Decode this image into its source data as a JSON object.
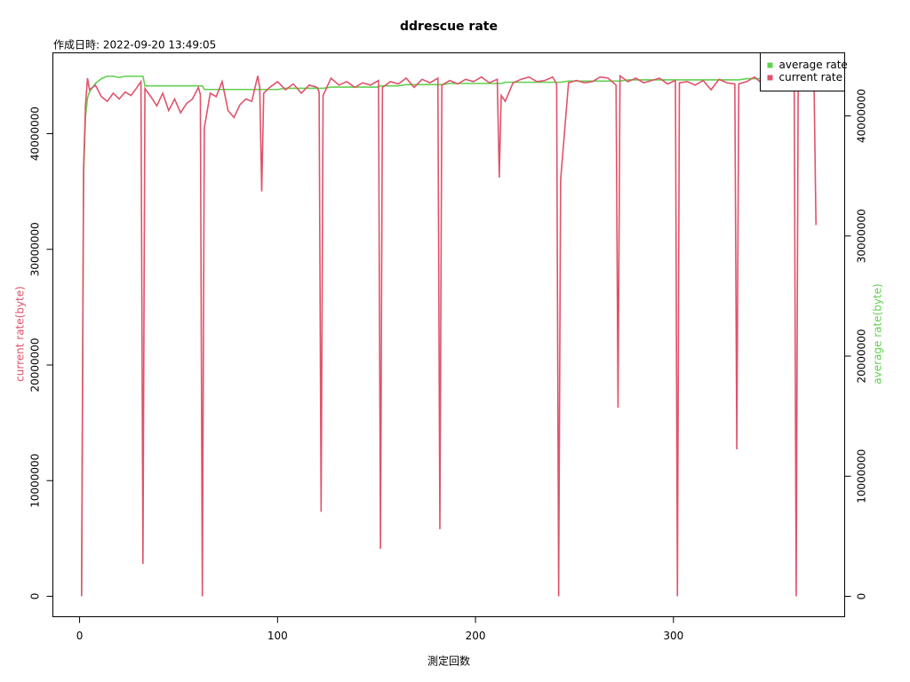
{
  "chart_data": {
    "type": "line",
    "title": "ddrescue rate",
    "subtitle": "作成日時: 2022-09-20 13:49:05",
    "x_label": "測定回数",
    "y_label": "current rate(byte)",
    "y2_label": "average rate(byte)",
    "legend": "top-right",
    "x": [
      1,
      2,
      3,
      4,
      5,
      8,
      11,
      14,
      17,
      20,
      23,
      26,
      29,
      31,
      32,
      33,
      36,
      39,
      42,
      45,
      48,
      51,
      54,
      57,
      60,
      61,
      62,
      63,
      66,
      69,
      72,
      75,
      78,
      81,
      84,
      87,
      90,
      91,
      92,
      93,
      96,
      100,
      104,
      108,
      112,
      116,
      120,
      121,
      122,
      123,
      127,
      131,
      135,
      139,
      143,
      147,
      151,
      152,
      153,
      157,
      161,
      165,
      169,
      173,
      177,
      181,
      182,
      183,
      187,
      191,
      195,
      199,
      203,
      207,
      211,
      212,
      213,
      215,
      219,
      223,
      227,
      231,
      235,
      239,
      241,
      242,
      243,
      247,
      251,
      255,
      259,
      263,
      267,
      271,
      272,
      273,
      277,
      281,
      285,
      289,
      293,
      297,
      301,
      302,
      303,
      307,
      311,
      315,
      319,
      323,
      327,
      331,
      332,
      333,
      337,
      341,
      345,
      349,
      353,
      357,
      361,
      362,
      363,
      367,
      371,
      372
    ],
    "series": [
      {
        "name": "average rate",
        "color": "#61D04F",
        "axis": "y2",
        "values": [
          0,
          35000000,
          40000000,
          41500000,
          42000000,
          42700000,
          43100000,
          43300000,
          43300000,
          43200000,
          43300000,
          43300000,
          43300000,
          43300000,
          43300000,
          42500000,
          42500000,
          42500000,
          42500000,
          42500000,
          42500000,
          42500000,
          42500000,
          42500000,
          42500000,
          42500000,
          42500000,
          42200000,
          42200000,
          42200000,
          42200000,
          42200000,
          42200000,
          42200000,
          42200000,
          42200000,
          42200000,
          42200000,
          42200000,
          42200000,
          42200000,
          42200000,
          42300000,
          42300000,
          42300000,
          42300000,
          42300000,
          42300000,
          42300000,
          42300000,
          42400000,
          42400000,
          42400000,
          42400000,
          42400000,
          42400000,
          42400000,
          42500000,
          42500000,
          42500000,
          42500000,
          42600000,
          42600000,
          42600000,
          42600000,
          42600000,
          42600000,
          42600000,
          42700000,
          42700000,
          42700000,
          42700000,
          42700000,
          42700000,
          42700000,
          42700000,
          42700000,
          42800000,
          42800000,
          42800000,
          42800000,
          42800000,
          42800000,
          42800000,
          42800000,
          42800000,
          42800000,
          42900000,
          42900000,
          42900000,
          42900000,
          42900000,
          42900000,
          42900000,
          42900000,
          42900000,
          43000000,
          43000000,
          43000000,
          43000000,
          43000000,
          43000000,
          43000000,
          43000000,
          43000000,
          43000000,
          43000000,
          43000000,
          43000000,
          43000000,
          43000000,
          43000000,
          43000000,
          43000000,
          43100000,
          43100000,
          43100000,
          43100000,
          43100000,
          43100000,
          43100000,
          43100000,
          43100000,
          43100000,
          43100000,
          43100000
        ]
      },
      {
        "name": "current rate",
        "color": "#DF536B",
        "values": [
          0,
          37000000,
          42500000,
          44800000,
          43800000,
          44200000,
          43200000,
          42800000,
          43500000,
          43000000,
          43600000,
          43300000,
          44000000,
          44500000,
          2800000,
          43900000,
          43200000,
          42400000,
          43500000,
          42000000,
          43000000,
          41800000,
          42600000,
          43000000,
          44000000,
          43400000,
          0,
          40500000,
          43500000,
          43200000,
          44500000,
          42000000,
          41400000,
          42500000,
          43000000,
          42800000,
          45000000,
          44000000,
          35000000,
          43500000,
          44000000,
          44500000,
          43800000,
          44300000,
          43500000,
          44200000,
          44000000,
          43600000,
          7300000,
          43300000,
          44800000,
          44200000,
          44500000,
          44000000,
          44400000,
          44200000,
          44600000,
          4100000,
          44000000,
          44500000,
          44300000,
          44800000,
          44000000,
          44700000,
          44400000,
          44800000,
          5800000,
          44200000,
          44600000,
          44300000,
          44700000,
          44500000,
          44900000,
          44400000,
          44700000,
          36200000,
          43300000,
          42800000,
          44400000,
          44700000,
          44900000,
          44500000,
          44600000,
          44900000,
          44300000,
          0,
          36000000,
          44400000,
          44600000,
          44400000,
          44500000,
          44900000,
          44800000,
          44200000,
          16300000,
          45000000,
          44500000,
          44800000,
          44400000,
          44600000,
          44800000,
          44300000,
          44600000,
          0,
          44400000,
          44500000,
          44200000,
          44600000,
          43800000,
          44700000,
          44400000,
          44300000,
          12700000,
          44300000,
          44500000,
          44900000,
          44300000,
          44600000,
          44200000,
          44500000,
          44600000,
          0,
          44600000,
          44800000,
          44600000,
          32100000
        ]
      }
    ],
    "xlim": [
      -13.5,
      386.5
    ],
    "xticks": [
      0,
      100,
      200,
      300
    ],
    "ylim": [
      -1770000,
      46990000
    ],
    "yticks": [
      0,
      10000000,
      20000000,
      30000000,
      40000000
    ],
    "y2lim": [
      -1700000,
      45250000
    ],
    "y2ticks": [
      0,
      10000000,
      20000000,
      30000000,
      40000000
    ]
  }
}
